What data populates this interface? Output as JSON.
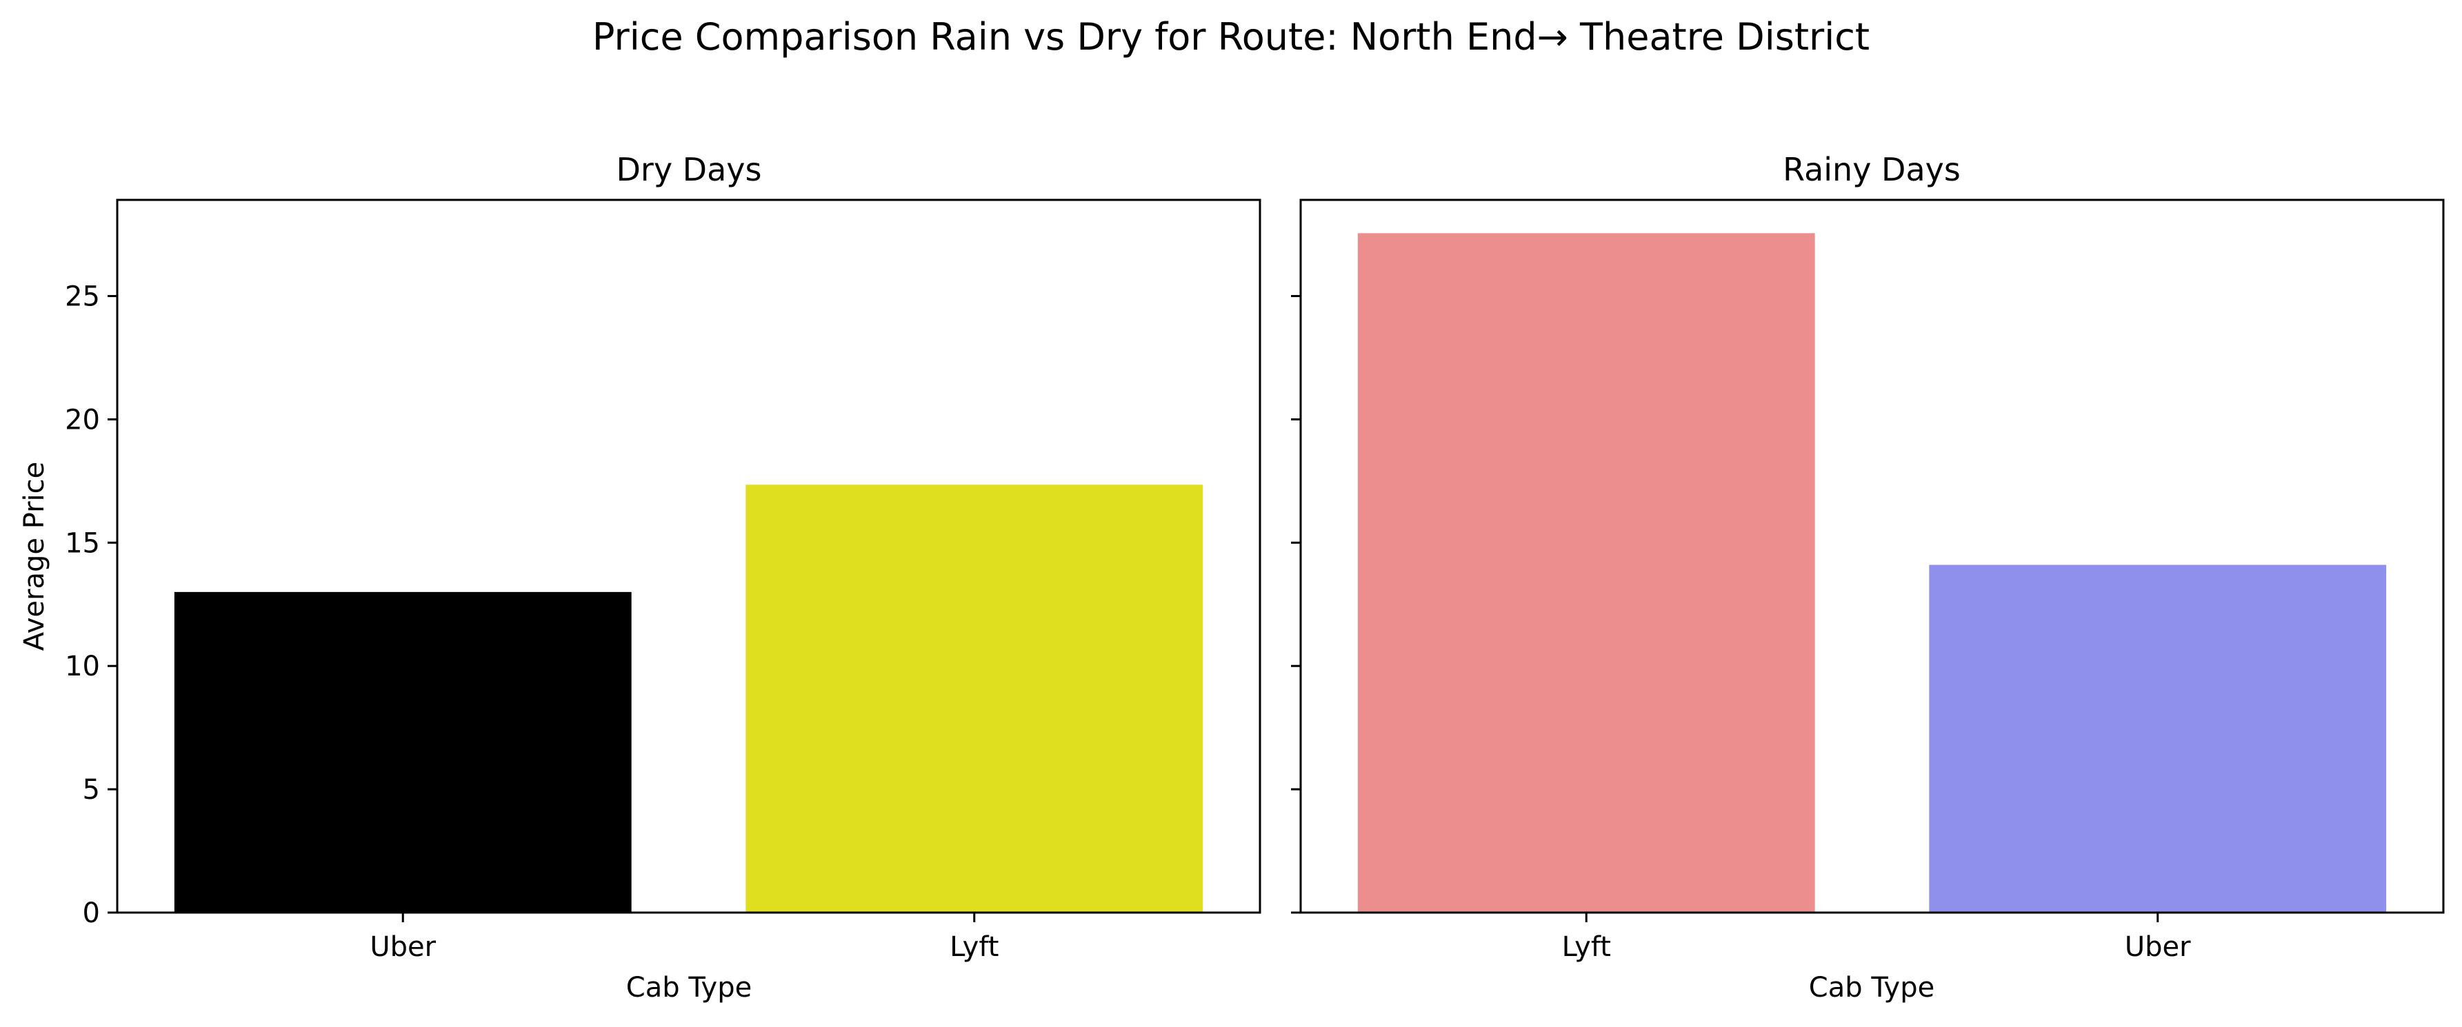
{
  "title": "Price Comparison Rain vs Dry for Route: North End→ Theatre District",
  "chart_data": [
    {
      "type": "bar",
      "title": "Dry Days",
      "categories": [
        "Uber",
        "Lyft"
      ],
      "values": [
        13.0,
        17.35
      ],
      "colors": [
        "#000000",
        "#dfdf20"
      ],
      "xlabel": "Cab Type",
      "ylabel": "Average Price",
      "ylim": [
        0,
        28.9
      ],
      "yticks": [
        "0",
        "5",
        "10",
        "15",
        "20",
        "25"
      ],
      "grid": false
    },
    {
      "type": "bar",
      "title": "Rainy Days",
      "categories": [
        "Lyft",
        "Uber"
      ],
      "values": [
        27.55,
        14.1
      ],
      "colors": [
        "#ec8e8e",
        "#8f8fec"
      ],
      "xlabel": "Cab Type",
      "ylabel": "",
      "ylim": [
        0,
        28.9
      ],
      "yticks": [
        "0",
        "5",
        "10",
        "15",
        "20",
        "25"
      ],
      "grid": false
    }
  ]
}
